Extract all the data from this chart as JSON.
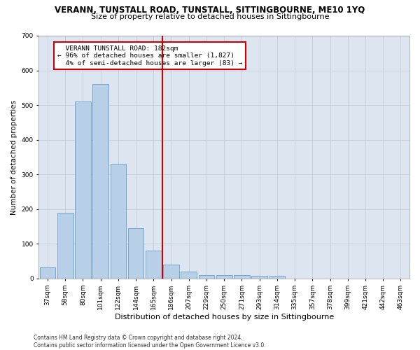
{
  "title": "VERANN, TUNSTALL ROAD, TUNSTALL, SITTINGBOURNE, ME10 1YQ",
  "subtitle": "Size of property relative to detached houses in Sittingbourne",
  "xlabel": "Distribution of detached houses by size in Sittingbourne",
  "ylabel": "Number of detached properties",
  "categories": [
    "37sqm",
    "58sqm",
    "80sqm",
    "101sqm",
    "122sqm",
    "144sqm",
    "165sqm",
    "186sqm",
    "207sqm",
    "229sqm",
    "250sqm",
    "271sqm",
    "293sqm",
    "314sqm",
    "335sqm",
    "357sqm",
    "378sqm",
    "399sqm",
    "421sqm",
    "442sqm",
    "463sqm"
  ],
  "values": [
    32,
    190,
    510,
    560,
    330,
    145,
    80,
    40,
    20,
    10,
    10,
    10,
    8,
    8,
    0,
    0,
    0,
    0,
    0,
    0,
    0
  ],
  "bar_color": "#b8cfe8",
  "bar_edge_color": "#6b9fc8",
  "bg_color": "#dde6f0",
  "grid_color": "#c5cdd8",
  "property_line_x": 7.0,
  "property_line_color": "#cc0000",
  "annotation_text": "  VERANN TUNSTALL ROAD: 182sqm\n← 96% of detached houses are smaller (1,827)\n  4% of semi-detached houses are larger (83) →",
  "annotation_box_color": "#cc0000",
  "ylim": [
    0,
    700
  ],
  "yticks": [
    0,
    100,
    200,
    300,
    400,
    500,
    600,
    700
  ],
  "footnote": "Contains HM Land Registry data © Crown copyright and database right 2024.\nContains public sector information licensed under the Open Government Licence v3.0.",
  "title_fontsize": 8.5,
  "subtitle_fontsize": 8.0,
  "xlabel_fontsize": 8.0,
  "ylabel_fontsize": 7.5,
  "tick_fontsize": 6.5,
  "footnote_fontsize": 5.5
}
